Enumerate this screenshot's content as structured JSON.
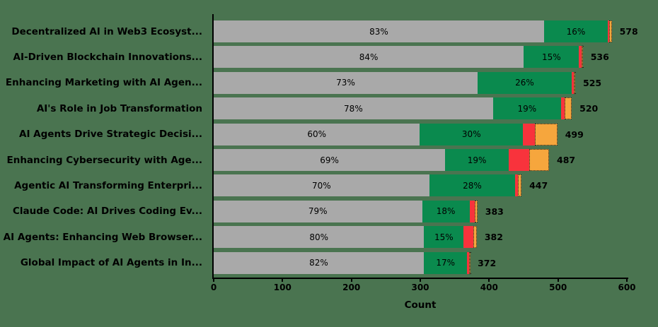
{
  "chart_data": {
    "type": "bar",
    "orientation": "horizontal",
    "stacked": true,
    "xlabel": "Count",
    "xlim": [
      0,
      600
    ],
    "x_ticks": [
      0,
      100,
      200,
      300,
      400,
      500,
      600
    ],
    "grid": false,
    "background_color": "#4a7450",
    "text_color": "#000000",
    "categories": [
      "Decentralized AI in Web3 Ecosyst...",
      "AI-Driven Blockchain Innovations...",
      "Enhancing Marketing with AI Agen...",
      "AI's Role in Job Transformation",
      "AI Agents Drive Strategic Decisi...",
      "Enhancing Cybersecurity with Age...",
      "Agentic AI Transforming Enterpri...",
      "Claude Code: AI Drives Coding Ev...",
      "AI Agents: Enhancing Web Browser...",
      "Global Impact of AI Agents in In..."
    ],
    "totals": [
      578,
      536,
      525,
      520,
      499,
      487,
      447,
      383,
      382,
      372
    ],
    "series": [
      {
        "name": "segment-gray",
        "color": "#a9a9a9",
        "percents": [
          83,
          84,
          73,
          78,
          60,
          69,
          70,
          79,
          80,
          82
        ],
        "labels": [
          "83%",
          "84%",
          "73%",
          "78%",
          "60%",
          "69%",
          "70%",
          "79%",
          "80%",
          "82%"
        ],
        "labels_visible": true
      },
      {
        "name": "segment-green",
        "color": "#0a8a4e",
        "percents": [
          16,
          15,
          26,
          19,
          30,
          19,
          28,
          18,
          15,
          17
        ],
        "labels": [
          "16%",
          "15%",
          "26%",
          "19%",
          "30%",
          "19%",
          "28%",
          "18%",
          "15%",
          "17%"
        ],
        "labels_visible": true
      },
      {
        "name": "segment-red",
        "color": "#f8333c",
        "percents": [
          0.3,
          0.6,
          0.55,
          1.0,
          3.5,
          6.0,
          0.8,
          2.0,
          3.8,
          0.6
        ],
        "labels": [],
        "labels_visible": false
      },
      {
        "name": "segment-orange",
        "color": "#f6a63d",
        "percents": [
          0.7,
          0.4,
          0.45,
          2.0,
          6.5,
          6.0,
          1.2,
          1.0,
          1.2,
          0.4
        ],
        "labels": [],
        "labels_visible": false
      }
    ]
  }
}
